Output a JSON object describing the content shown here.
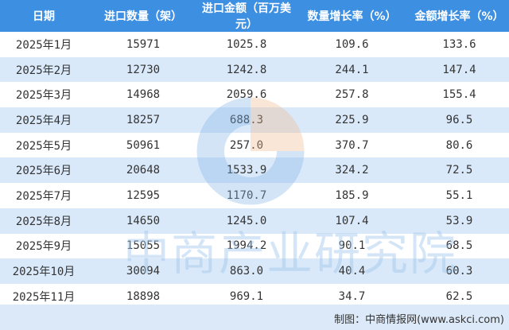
{
  "table": {
    "headers": [
      "日期",
      "进口数量（架）",
      "进口金额（百万美元）",
      "数量增长率（%）",
      "金额增长率（%）"
    ],
    "rows": [
      [
        "2025年1月",
        "15971",
        "1025.8",
        "109.6",
        "133.6"
      ],
      [
        "2025年2月",
        "12730",
        "1242.8",
        "244.1",
        "147.4"
      ],
      [
        "2025年3月",
        "14968",
        "2059.6",
        "257.8",
        "155.4"
      ],
      [
        "2025年4月",
        "18257",
        "688.3",
        "225.9",
        "96.5"
      ],
      [
        "2025年5月",
        "50961",
        "257.0",
        "370.7",
        "80.6"
      ],
      [
        "2025年6月",
        "20648",
        "1533.9",
        "324.2",
        "72.5"
      ],
      [
        "2025年7月",
        "12595",
        "1170.7",
        "185.9",
        "55.1"
      ],
      [
        "2025年8月",
        "14650",
        "1245.0",
        "107.4",
        "53.9"
      ],
      [
        "2025年9月",
        "15055",
        "1994.2",
        "90.1",
        "68.5"
      ],
      [
        "2025年10月",
        "30094",
        "863.0",
        "40.4",
        "60.3"
      ],
      [
        "2025年11月",
        "18898",
        "969.1",
        "34.7",
        "62.5"
      ]
    ]
  },
  "footer": {
    "source": "制图：中商情报网(www.askci.com)"
  },
  "watermark": {
    "text": "中商产业研究院"
  },
  "colors": {
    "header_bg": "#3d8fe2",
    "stripe": "#cee2f7"
  }
}
